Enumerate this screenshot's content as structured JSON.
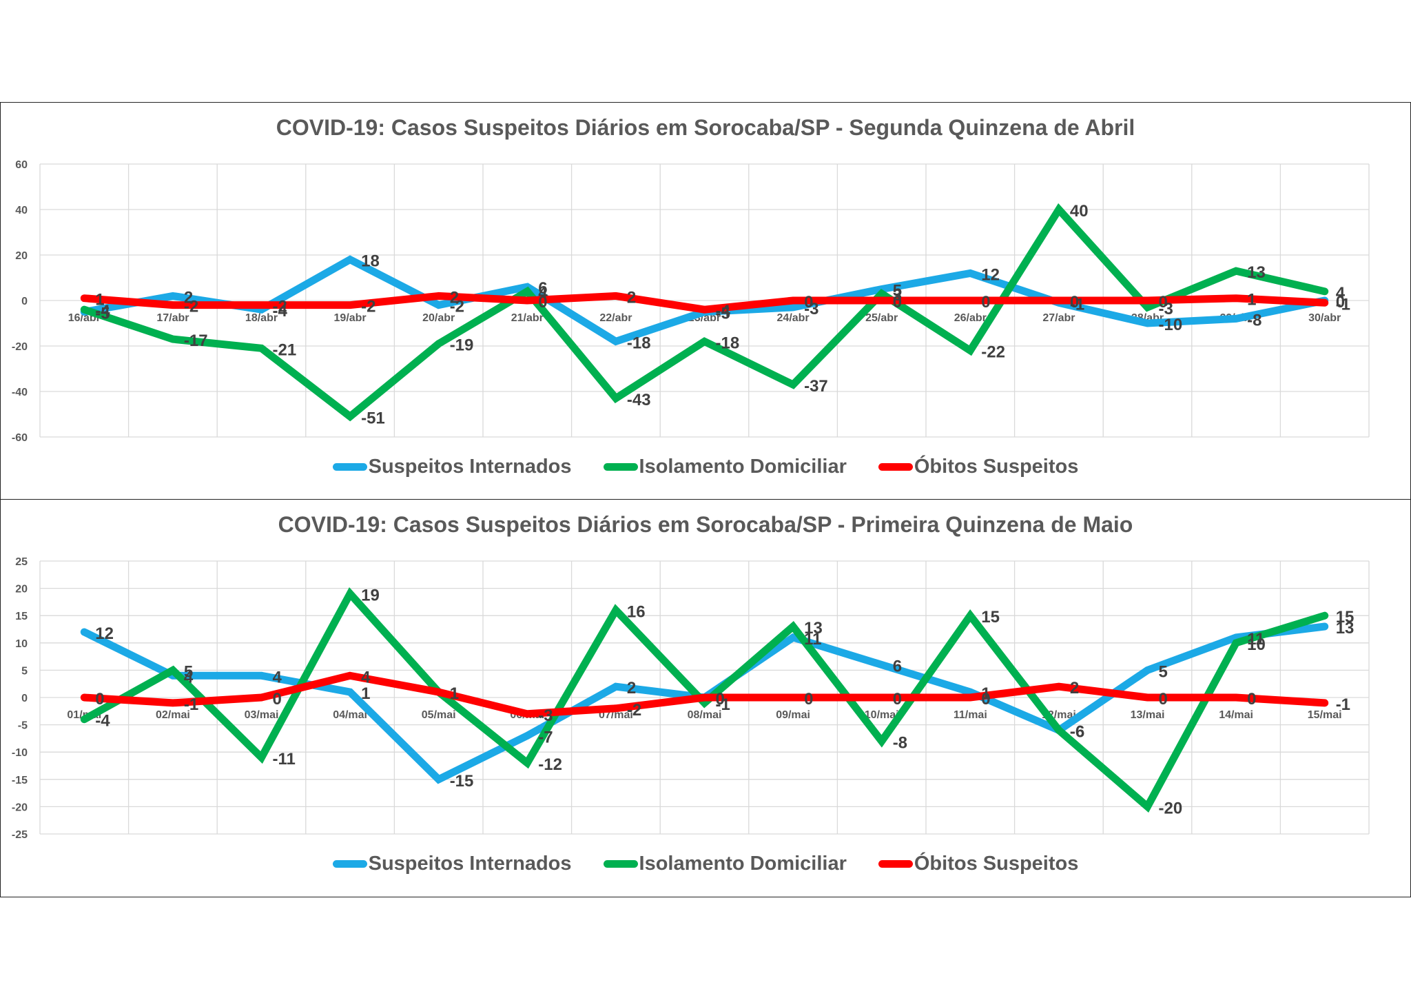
{
  "colors": {
    "internados": "#1CA9E6",
    "isolamento": "#00B050",
    "obitos": "#FF0000",
    "grid": "#D9D9D9",
    "text": "#595959",
    "label": "#404040"
  },
  "chart_data": [
    {
      "type": "line",
      "title": "COVID-19: Casos Suspeitos Diários em Sorocaba/SP  - Segunda Quinzena de Abril",
      "categories": [
        "16/abr",
        "17/abr",
        "18/abr",
        "19/abr",
        "20/abr",
        "21/abr",
        "22/abr",
        "23/abr",
        "24/abr",
        "25/abr",
        "26/abr",
        "27/abr",
        "28/abr",
        "29/abr",
        "30/abr"
      ],
      "ylim": [
        -60,
        60
      ],
      "yticks": [
        60,
        40,
        20,
        0,
        -20,
        -40,
        -60
      ],
      "grid": true,
      "legend": "bottom",
      "series": [
        {
          "name": "Suspeitos Internados",
          "values": [
            -5,
            2,
            -4,
            18,
            -2,
            6,
            -18,
            -5,
            -3,
            5,
            12,
            -1,
            -10,
            -8,
            0
          ]
        },
        {
          "name": "Isolamento Domiciliar",
          "values": [
            -4,
            -17,
            -21,
            -51,
            -19,
            4,
            -43,
            -18,
            -37,
            3,
            -22,
            40,
            -3,
            13,
            4
          ]
        },
        {
          "name": "Óbitos Suspeitos",
          "values": [
            1,
            -2,
            -2,
            -2,
            2,
            0,
            2,
            -4,
            0,
            0,
            0,
            0,
            0,
            1,
            -1
          ]
        }
      ]
    },
    {
      "type": "line",
      "title": "COVID-19: Casos Suspeitos Diários em Sorocaba/SP - Primeira Quinzena de Maio",
      "categories": [
        "01/mai",
        "02/mai",
        "03/mai",
        "04/mai",
        "05/mai",
        "06/mai",
        "07/mai",
        "08/mai",
        "09/mai",
        "10/mai",
        "11/mai",
        "12/mai",
        "13/mai",
        "14/mai",
        "15/mai"
      ],
      "ylim": [
        -25,
        25
      ],
      "yticks": [
        25,
        20,
        15,
        10,
        5,
        0,
        -5,
        -10,
        -15,
        -20,
        -25
      ],
      "grid": true,
      "legend": "bottom",
      "series": [
        {
          "name": "Suspeitos Internados",
          "values": [
            12,
            4,
            4,
            1,
            -15,
            -7,
            2,
            0,
            11,
            6,
            1,
            -6,
            5,
            11,
            13
          ]
        },
        {
          "name": "Isolamento Domiciliar",
          "values": [
            -4,
            5,
            -11,
            19,
            1,
            -12,
            16,
            -1,
            13,
            -8,
            15,
            -6,
            -20,
            10,
            15
          ]
        },
        {
          "name": "Óbitos Suspeitos",
          "values": [
            0,
            -1,
            0,
            4,
            1,
            -3,
            -2,
            0,
            0,
            0,
            0,
            2,
            0,
            0,
            -1
          ]
        }
      ]
    }
  ]
}
